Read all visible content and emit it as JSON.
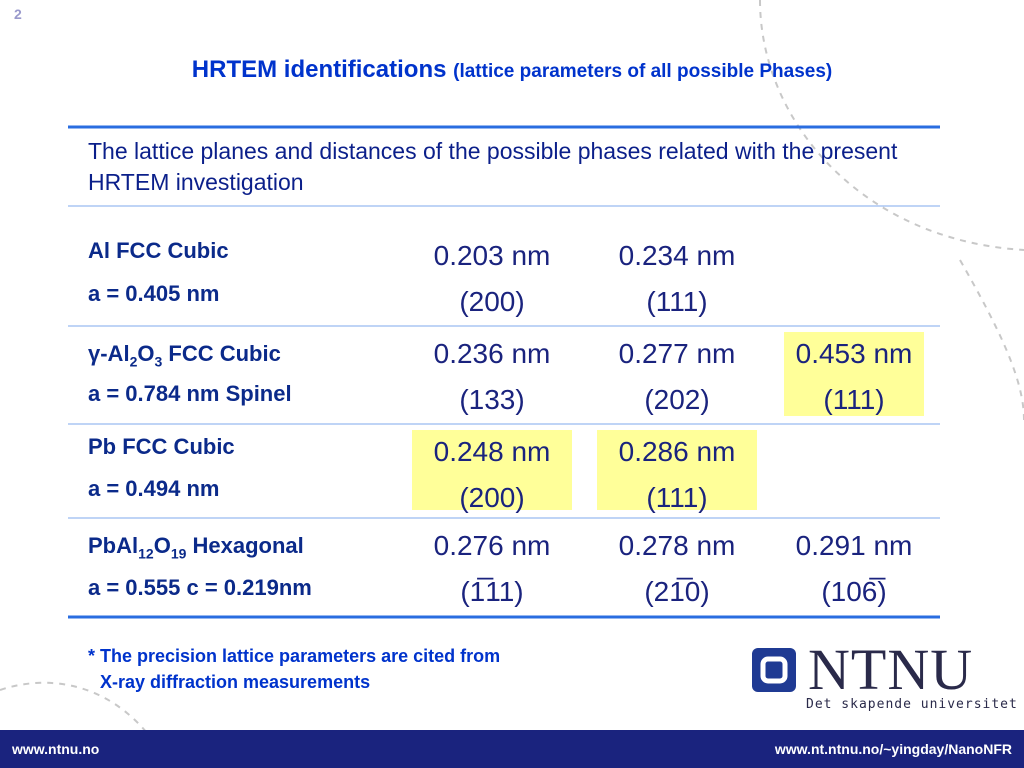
{
  "slide_number": "2",
  "title": {
    "main": "HRTEM identifications",
    "sub": "(lattice parameters of all possible Phases)"
  },
  "table": {
    "header": "The lattice planes and distances of the possible phases related with the present HRTEM investigation",
    "rows": [
      {
        "phase": [
          {
            "text": "Al FCC Cubic"
          }
        ],
        "lattice": "a = 0.405 nm",
        "cells": [
          {
            "distance": "0.203 nm",
            "plane": "(200)"
          },
          {
            "distance": "0.234 nm",
            "plane": "(111)"
          },
          null
        ]
      },
      {
        "phase": [
          {
            "text": "γ-Al"
          },
          {
            "text": "2",
            "sub": true
          },
          {
            "text": "O"
          },
          {
            "text": "3",
            "sub": true
          },
          {
            "text": " FCC Cubic"
          }
        ],
        "lattice": "a = 0.784 nm Spinel",
        "cells": [
          {
            "distance": "0.236 nm",
            "plane": "(133)"
          },
          {
            "distance": "0.277 nm",
            "plane": "(202)"
          },
          {
            "distance": "0.453 nm",
            "plane": "(111)",
            "highlight": true
          }
        ]
      },
      {
        "phase": [
          {
            "text": "Pb FCC Cubic"
          }
        ],
        "lattice": "a = 0.494 nm",
        "cells": [
          {
            "distance": "0.248 nm",
            "plane": "(200)",
            "highlight": true
          },
          {
            "distance": "0.286 nm",
            "plane": "(111)",
            "highlight": true
          },
          null
        ]
      },
      {
        "phase": [
          {
            "text": "PbAl"
          },
          {
            "text": "12",
            "sub": true
          },
          {
            "text": "O"
          },
          {
            "text": "19",
            "sub": true
          },
          {
            "text": " Hexagonal"
          }
        ],
        "lattice": "a = 0.555 c = 0.219nm",
        "cells": [
          {
            "distance": "0.276 nm",
            "plane": "(1̅11)"
          },
          {
            "distance": "0.278 nm",
            "plane": "(21̅0)"
          },
          {
            "distance": "0.291 nm",
            "plane": "(106̅)"
          }
        ]
      }
    ]
  },
  "note": [
    "* The precision lattice parameters are cited from",
    "X-ray diffraction measurements"
  ],
  "logo": {
    "name": "NTNU",
    "tagline": "Det skapende universitet"
  },
  "footer": {
    "left": "www.ntnu.no",
    "right": "www.nt.ntnu.no/~yingday/NanoNFR"
  }
}
